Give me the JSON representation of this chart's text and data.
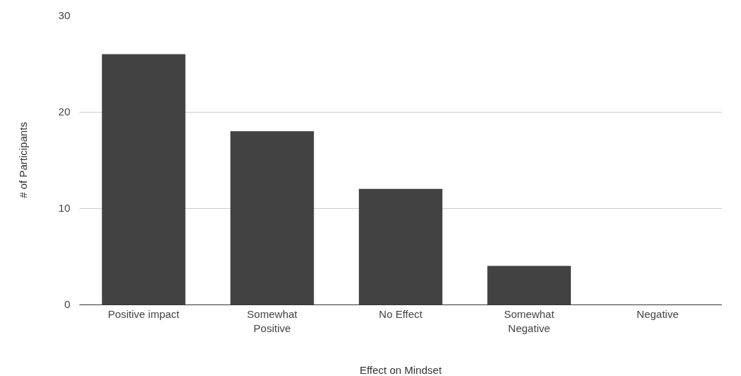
{
  "chart_data": {
    "type": "bar",
    "xlabel": "Effect on Mindset",
    "ylabel": "# of Participants",
    "categories": [
      "Positive impact",
      "Somewhat Positive",
      "No Effect",
      "Somewhat Negative",
      "Negative"
    ],
    "values": [
      26,
      18,
      12,
      4,
      0
    ],
    "color": "#424242",
    "ylim": [
      0,
      30
    ],
    "yticks": [
      0,
      10,
      20,
      30
    ],
    "grid": "y",
    "legend": false
  }
}
